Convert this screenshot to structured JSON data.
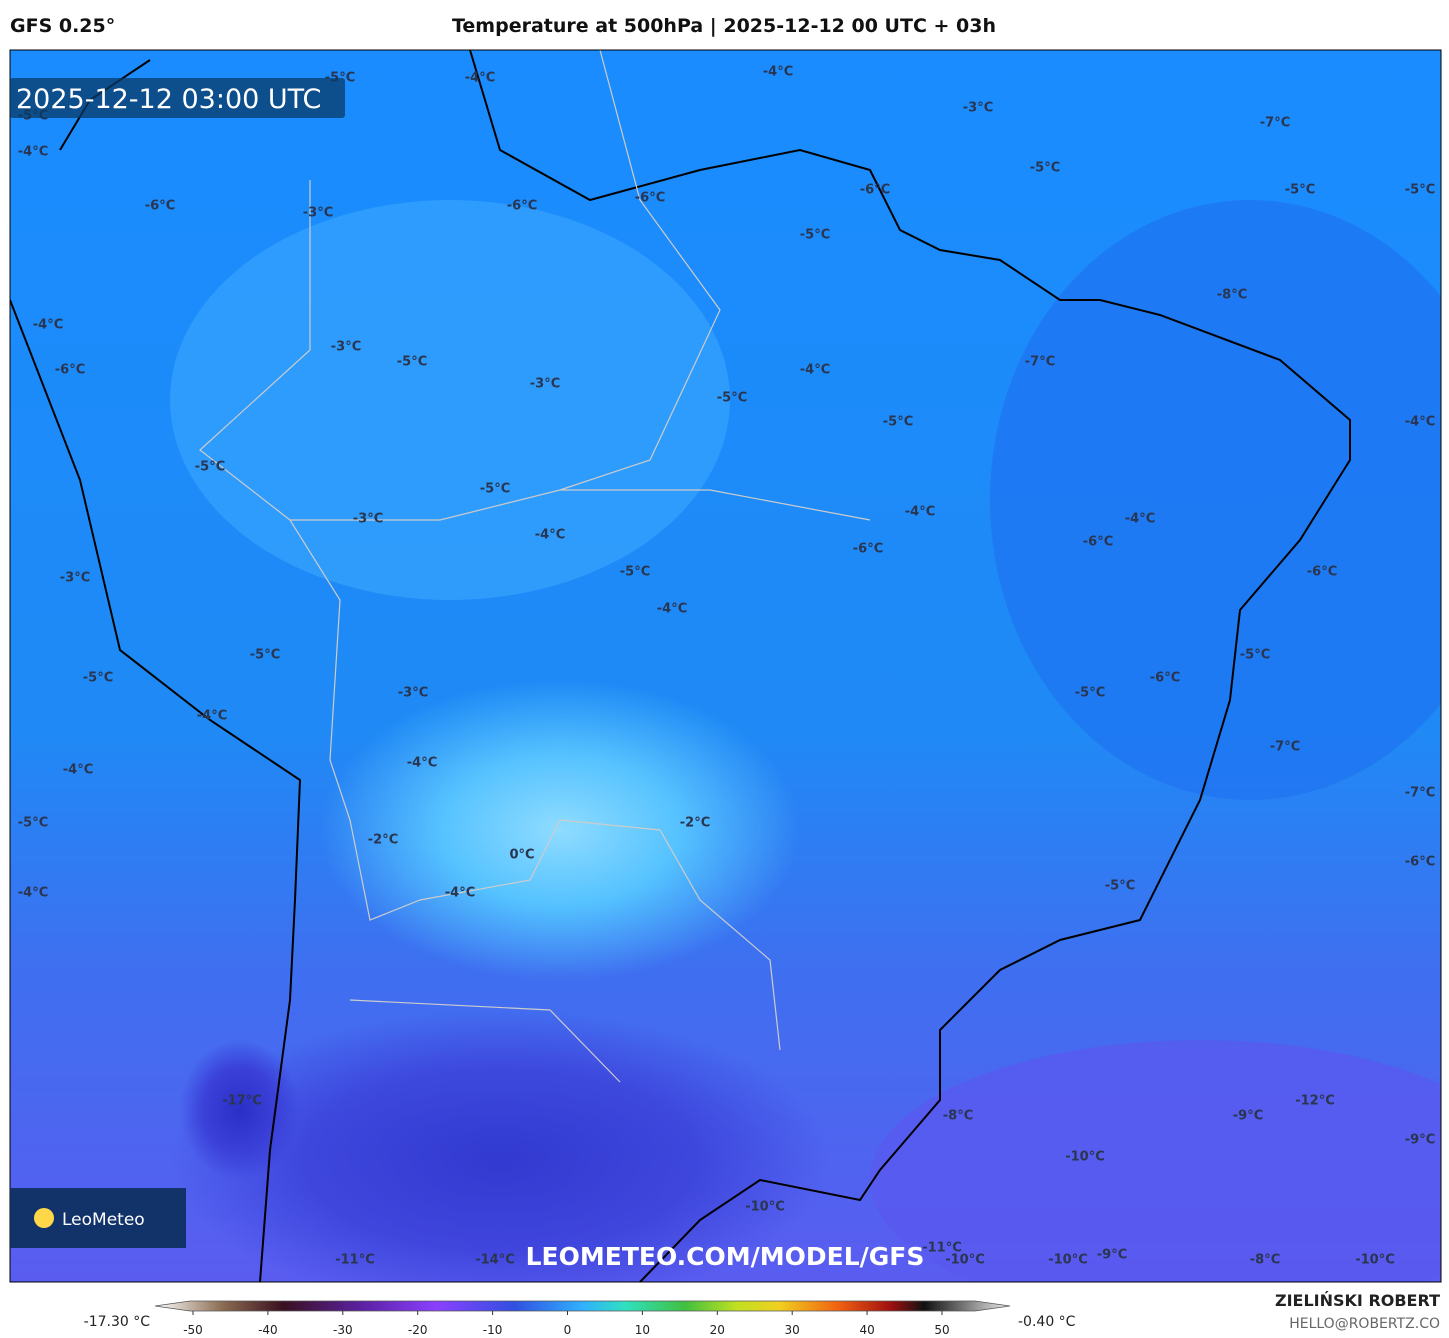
{
  "header": {
    "model": "GFS 0.25°",
    "title": "Temperature at 500hPa | 2025-12-12 00 UTC + 03h"
  },
  "map": {
    "timestamp": "2025-12-12 03:00 UTC",
    "logo": "LeoMeteo",
    "watermark": "LEOMETEO.COM/MODEL/GFS",
    "contour_labels": [
      "-5°C",
      "-4°C",
      "-4°C",
      "-3°C",
      "-7°C",
      "-5°C",
      "-4°C",
      "-5°C",
      "-6°C",
      "-5°C",
      "-5°C",
      "-6°C",
      "-3°C",
      "-6°C",
      "-6°C",
      "-5°C",
      "-8°C",
      "-4°C",
      "-3°C",
      "-5°C",
      "-7°C",
      "-6°C",
      "-4°C",
      "-3°C",
      "-5°C",
      "-5°C",
      "-4°C",
      "-5°C",
      "-5°C",
      "-4°C",
      "-3°C",
      "-4°C",
      "-4°C",
      "-6°C",
      "-6°C",
      "-5°C",
      "-3°C",
      "-6°C",
      "-4°C",
      "-5°C",
      "-5°C",
      "-5°C",
      "-6°C",
      "-5°C",
      "-3°C",
      "-4°C",
      "-7°C",
      "-4°C",
      "-4°C",
      "-7°C",
      "-5°C",
      "-2°C",
      "-2°C",
      "0°C",
      "-6°C",
      "-4°C",
      "-4°C",
      "-5°C",
      "-17°C",
      "-12°C",
      "-8°C",
      "-9°C",
      "-9°C",
      "-10°C",
      "-10°C",
      "-11°C",
      "-14°C",
      "-11°C",
      "-10°C",
      "-10°C",
      "-9°C",
      "-8°C",
      "-10°C"
    ]
  },
  "colorbar": {
    "min_label": "-17.30 °C",
    "max_label": "-0.40 °C",
    "ticks": [
      -50,
      -40,
      -30,
      -20,
      -10,
      0,
      10,
      20,
      30,
      40,
      50
    ]
  },
  "footer": {
    "author": "ZIELIŃSKI ROBERT",
    "email": "HELLO@ROBERTZ.CO"
  }
}
